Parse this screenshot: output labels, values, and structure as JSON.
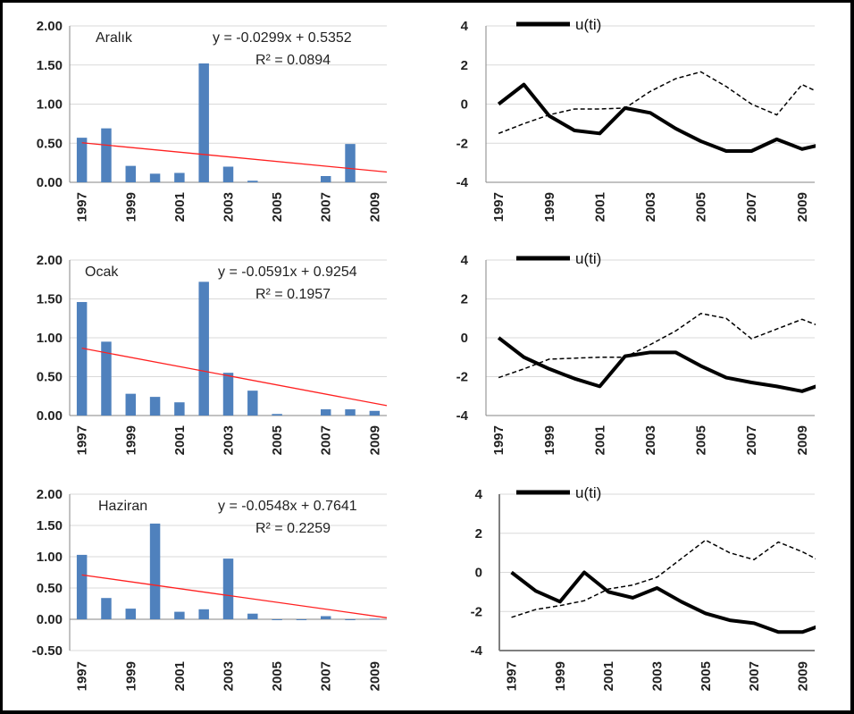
{
  "chart_data": [
    {
      "type": "bar",
      "label": "Aralık",
      "equation": "y = -0.0299x + 0.5352",
      "r2": "R² = 0.0894",
      "x": [
        1997,
        1998,
        1999,
        2000,
        2001,
        2002,
        2003,
        2004,
        2005,
        2006,
        2007,
        2008,
        2009
      ],
      "values": [
        0.57,
        0.69,
        0.21,
        0.11,
        0.12,
        1.52,
        0.2,
        0.02,
        0.0,
        0.0,
        0.08,
        0.49,
        0.0
      ],
      "trendline": {
        "slope": -0.0299,
        "intercept": 0.5352,
        "color": "#ff2020"
      },
      "bar_color": "#4f81bd",
      "yticks": [
        "2.00",
        "1.50",
        "1.00",
        "0.50",
        "0.00"
      ],
      "ylim": [
        0,
        2
      ],
      "xticks": [
        "1997",
        "1999",
        "2001",
        "2003",
        "2005",
        "2007",
        "2009"
      ]
    },
    {
      "type": "line",
      "legend": "u(ti)",
      "x": [
        1997,
        1998,
        1999,
        2000,
        2001,
        2002,
        2003,
        2004,
        2005,
        2006,
        2007,
        2008,
        2009,
        2010
      ],
      "series": [
        {
          "name": "u(ti)",
          "style": "solid",
          "values": [
            0,
            1.0,
            -0.6,
            -1.35,
            -1.5,
            -0.2,
            -0.45,
            -1.25,
            -1.9,
            -2.4,
            -2.4,
            -1.8,
            -2.3,
            -2.0
          ]
        },
        {
          "style": "dashed",
          "values": [
            -1.5,
            -1.0,
            -0.55,
            -0.25,
            -0.25,
            -0.2,
            0.65,
            1.3,
            1.65,
            0.9,
            0,
            -0.55,
            1.0,
            0.4
          ]
        }
      ],
      "yticks": [
        "4",
        "2",
        "0",
        "-2",
        "-4"
      ],
      "ylim": [
        -4,
        4
      ],
      "xticks": [
        "1997",
        "1999",
        "2001",
        "2003",
        "2005",
        "2007",
        "2009"
      ]
    },
    {
      "type": "bar",
      "label": "Ocak",
      "equation": "y = -0.0591x + 0.9254",
      "r2": "R² = 0.1957",
      "x": [
        1997,
        1998,
        1999,
        2000,
        2001,
        2002,
        2003,
        2004,
        2005,
        2006,
        2007,
        2008,
        2009
      ],
      "values": [
        1.46,
        0.95,
        0.28,
        0.24,
        0.17,
        1.72,
        0.55,
        0.32,
        0.02,
        0.0,
        0.08,
        0.08,
        0.06
      ],
      "trendline": {
        "slope": -0.0591,
        "intercept": 0.9254,
        "color": "#ff2020"
      },
      "bar_color": "#4f81bd",
      "yticks": [
        "2.00",
        "1.50",
        "1.00",
        "0.50",
        "0.00"
      ],
      "ylim": [
        0,
        2
      ],
      "xticks": [
        "1997",
        "1999",
        "2001",
        "2003",
        "2005",
        "2007",
        "2009"
      ]
    },
    {
      "type": "line",
      "legend": "u(ti)",
      "x": [
        1997,
        1998,
        1999,
        2000,
        2001,
        2002,
        2003,
        2004,
        2005,
        2006,
        2007,
        2008,
        2009,
        2010
      ],
      "series": [
        {
          "name": "u(ti)",
          "style": "solid",
          "values": [
            0,
            -1.0,
            -1.6,
            -2.1,
            -2.5,
            -0.95,
            -0.75,
            -0.75,
            -1.45,
            -2.05,
            -2.3,
            -2.5,
            -2.75,
            -2.3
          ]
        },
        {
          "style": "dashed",
          "values": [
            -2.05,
            -1.6,
            -1.1,
            -1.05,
            -1.0,
            -1.0,
            -0.35,
            0.35,
            1.25,
            1.0,
            -0.05,
            0.45,
            0.95,
            0.45
          ]
        }
      ],
      "yticks": [
        "4",
        "2",
        "0",
        "-2",
        "-4"
      ],
      "ylim": [
        -4,
        4
      ],
      "xticks": [
        "1997",
        "1999",
        "2001",
        "2003",
        "2005",
        "2007",
        "2009"
      ]
    },
    {
      "type": "bar",
      "label": "Haziran",
      "equation": "y = -0.0548x + 0.7641",
      "r2": "R² = 0.2259",
      "x": [
        1997,
        1998,
        1999,
        2000,
        2001,
        2002,
        2003,
        2004,
        2005,
        2006,
        2007,
        2008,
        2009
      ],
      "values": [
        1.03,
        0.34,
        0.17,
        1.53,
        0.12,
        0.16,
        0.97,
        0.09,
        -0.01,
        -0.01,
        0.05,
        -0.01,
        0.01
      ],
      "trendline": {
        "slope": -0.0548,
        "intercept": 0.7641,
        "color": "#ff2020"
      },
      "bar_color": "#4f81bd",
      "yticks": [
        "2.00",
        "1.50",
        "1.00",
        "0.50",
        "0.00",
        "-0.50"
      ],
      "ylim": [
        -0.5,
        2
      ],
      "xticks": [
        "1997",
        "1999",
        "2001",
        "2003",
        "2005",
        "2007",
        "2009"
      ]
    },
    {
      "type": "line",
      "legend": "u(ti)",
      "x": [
        1997,
        1998,
        1999,
        2000,
        2001,
        2002,
        2003,
        2004,
        2005,
        2006,
        2007,
        2008,
        2009,
        2010
      ],
      "series": [
        {
          "name": "u(ti)",
          "style": "solid",
          "values": [
            0,
            -0.95,
            -1.5,
            0,
            -1.0,
            -1.3,
            -0.8,
            -1.5,
            -2.1,
            -2.45,
            -2.6,
            -3.05,
            -3.05,
            -2.6
          ]
        },
        {
          "style": "dashed",
          "values": [
            -2.3,
            -1.9,
            -1.7,
            -1.45,
            -0.85,
            -0.65,
            -0.25,
            0.7,
            1.65,
            1.0,
            0.65,
            1.55,
            1.05,
            0.4
          ]
        }
      ],
      "yticks": [
        "4",
        "2",
        "0",
        "-2",
        "-4"
      ],
      "ylim": [
        -4,
        4
      ],
      "xticks": [
        "1997",
        "1999",
        "2001",
        "2003",
        "2005",
        "2007",
        "2009"
      ]
    }
  ]
}
